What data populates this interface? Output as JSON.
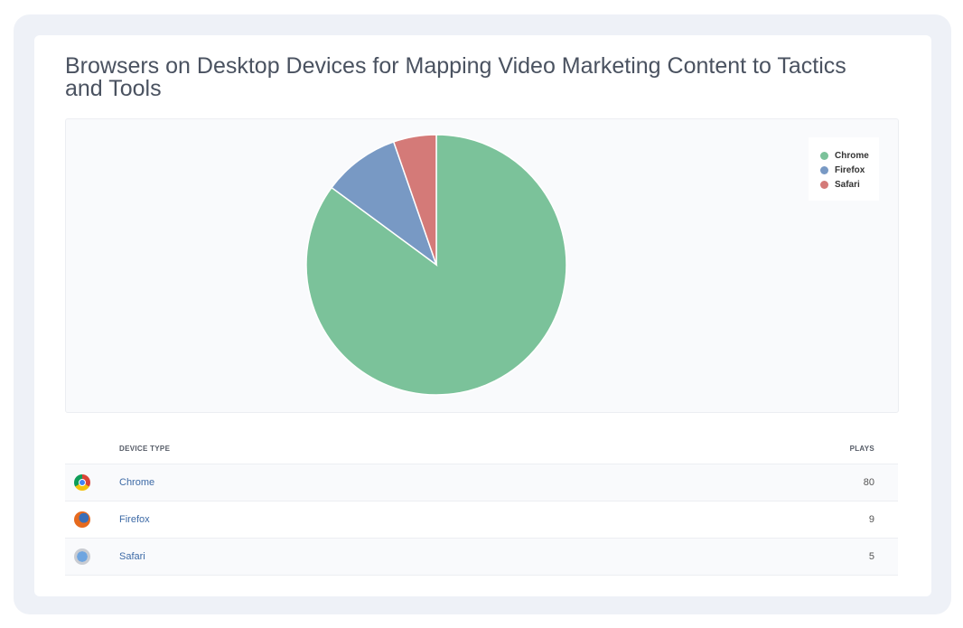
{
  "title": "Browsers on Desktop Devices for Mapping Video Marketing Content to Tactics and Tools",
  "chart_data": {
    "type": "pie",
    "categories": [
      "Chrome",
      "Firefox",
      "Safari"
    ],
    "values": [
      80,
      9,
      5
    ],
    "colors": [
      "#7bc29a",
      "#7899c4",
      "#d47a78"
    ],
    "legend": {
      "position": "top-right",
      "entries": [
        "Chrome",
        "Firefox",
        "Safari"
      ]
    }
  },
  "table": {
    "headers": {
      "device": "DEVICE TYPE",
      "plays": "PLAYS"
    },
    "rows": [
      {
        "icon": "chrome-icon",
        "name": "Chrome",
        "plays": "80"
      },
      {
        "icon": "firefox-icon",
        "name": "Firefox",
        "plays": "9"
      },
      {
        "icon": "safari-icon",
        "name": "Safari",
        "plays": "5"
      }
    ]
  }
}
